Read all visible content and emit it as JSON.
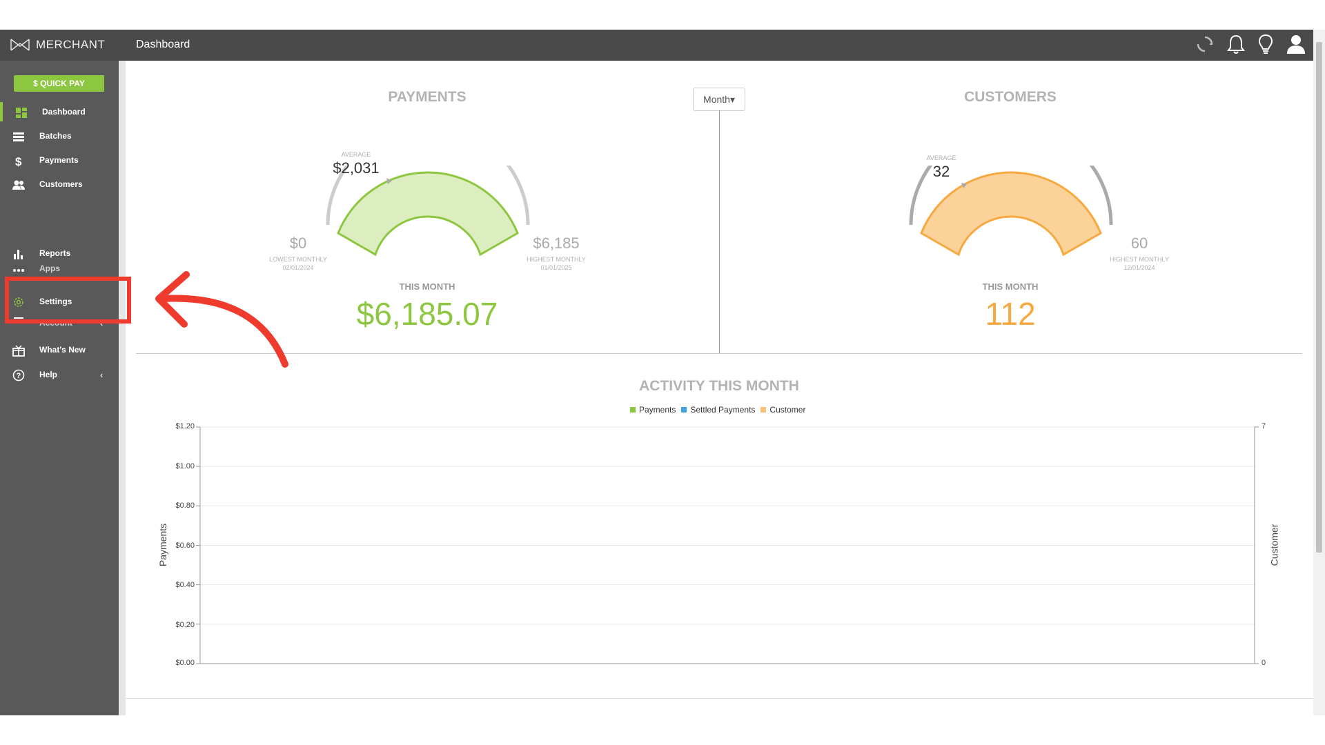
{
  "header": {
    "brand": "MERCHANT",
    "page_title": "Dashboard",
    "icons": [
      "refresh-icon",
      "bell-icon",
      "lightbulb-icon",
      "user-icon"
    ]
  },
  "sidebar": {
    "quick_pay_label": "$ QUICK PAY",
    "items": [
      {
        "label": "Dashboard",
        "icon": "dashboard-icon",
        "active": true
      },
      {
        "label": "Batches",
        "icon": "list-icon"
      },
      {
        "label": "Payments",
        "icon": "dollar-icon"
      },
      {
        "label": "Customers",
        "icon": "people-icon"
      },
      {
        "label": "Reports",
        "icon": "bar-chart-icon"
      },
      {
        "label": "Apps",
        "icon": "apps-icon"
      },
      {
        "label": "Settings",
        "icon": "gear-icon"
      },
      {
        "label": "Account",
        "icon": "account-icon"
      },
      {
        "label": "What's New",
        "icon": "gift-icon"
      },
      {
        "label": "Help",
        "icon": "help-icon"
      }
    ]
  },
  "filter": {
    "period_label": "Month▾"
  },
  "payments": {
    "title": "PAYMENTS",
    "average_label": "AVERAGE",
    "average_value": "$2,031",
    "low_value": "$0",
    "low_label": "LOWEST MONTHLY",
    "low_date": "02/01/2024",
    "high_value": "$6,185",
    "high_label": "HIGHEST MONTHLY",
    "high_date": "01/01/2025",
    "this_month_label": "THIS MONTH",
    "this_month_value": "$6,185.07",
    "gauge_fraction": 1.0,
    "average_fraction": 0.33,
    "color": "#8dc63f"
  },
  "customers": {
    "title": "CUSTOMERS",
    "average_label": "AVERAGE",
    "average_value": "32",
    "high_value": "60",
    "high_label": "HIGHEST MONTHLY",
    "high_date": "12/01/2024",
    "this_month_label": "THIS MONTH",
    "this_month_value": "112",
    "gauge_fraction": 1.0,
    "average_fraction": 0.53,
    "color": "#f7a940"
  },
  "chart_data": {
    "type": "line",
    "title": "ACTIVITY THIS MONTH",
    "series": [
      {
        "name": "Payments",
        "color": "#8dc63f",
        "values": []
      },
      {
        "name": "Settled Payments",
        "color": "#3ba3e0",
        "values": []
      },
      {
        "name": "Customer",
        "color": "#f7c17a",
        "values": []
      }
    ],
    "ylabel": "Payments",
    "y2label": "Customer",
    "yticks": [
      "$1.20",
      "$1.00",
      "$0.80",
      "$0.60",
      "$0.40",
      "$0.20",
      "$0.00"
    ],
    "y2ticks": [
      "7",
      "0"
    ],
    "ylim": [
      0,
      1.2
    ],
    "y2lim": [
      0,
      7
    ],
    "grid": true,
    "legend": "top-center"
  }
}
